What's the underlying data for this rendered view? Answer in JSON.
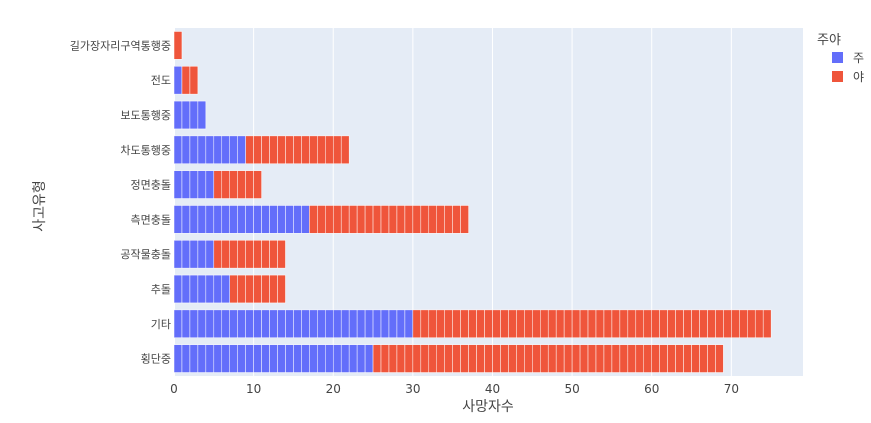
{
  "chart_data": {
    "type": "bar",
    "orientation": "horizontal",
    "barmode": "stack",
    "categories": [
      "횡단중",
      "기타",
      "추돌",
      "공작물충돌",
      "측면충돌",
      "정면충돌",
      "차도통행중",
      "보도통행중",
      "전도",
      "길가장자리구역통행중"
    ],
    "series": [
      {
        "name": "주",
        "color": "#636efa",
        "values": [
          25,
          30,
          7,
          5,
          17,
          5,
          9,
          4,
          1,
          0
        ]
      },
      {
        "name": "야",
        "color": "#ef553b",
        "values": [
          44,
          45,
          7,
          9,
          20,
          6,
          13,
          0,
          2,
          1
        ]
      }
    ],
    "xlabel": "사망자수",
    "ylabel": "사고유형",
    "xlim": [
      0,
      79
    ],
    "xticks": [
      0,
      10,
      20,
      30,
      40,
      50,
      60,
      70
    ],
    "legend_title": "주야",
    "legend_position": "top-right",
    "grid": true,
    "plot_bgcolor": "#e5ecf6"
  }
}
